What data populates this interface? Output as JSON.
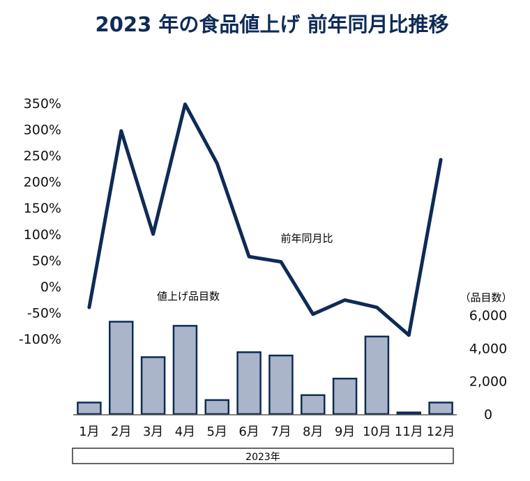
{
  "title": "2023 年の食品値上げ 前年同月比推移",
  "colors": {
    "line": "#0e2b57",
    "bar_fill": "#aab5c9",
    "bar_stroke": "#0e2b57",
    "title": "#0e2b57",
    "text": "#111111"
  },
  "chart_data": {
    "type": "bar+line",
    "title": "2023 年の食品値上げ 前年同月比推移",
    "categories": [
      "1月",
      "2月",
      "3月",
      "4月",
      "5月",
      "6月",
      "7月",
      "8月",
      "9月",
      "10月",
      "11月",
      "12月"
    ],
    "x_group_label": "2023年",
    "left_axis": {
      "ticks": [
        "350%",
        "300%",
        "250%",
        "200%",
        "150%",
        "100%",
        "50%",
        "0%",
        "-50%",
        "-100%"
      ],
      "ylim": [
        -100,
        350
      ]
    },
    "right_axis": {
      "unit_label": "（品目数）",
      "ticks": [
        "6,000",
        "4,000",
        "2,000",
        "0"
      ],
      "ylim": [
        0,
        6000
      ]
    },
    "series": [
      {
        "name": "前年同月比",
        "type": "line",
        "axis": "left",
        "values": [
          -40,
          297,
          100,
          348,
          235,
          57,
          47,
          -53,
          -26,
          -40,
          -93,
          242
        ]
      },
      {
        "name": "値上げ品目数",
        "type": "bar",
        "axis": "right",
        "values": [
          700,
          5600,
          3450,
          5350,
          850,
          3750,
          3550,
          1150,
          2150,
          4700,
          100,
          700
        ]
      }
    ],
    "grid": false,
    "legend": "none"
  }
}
